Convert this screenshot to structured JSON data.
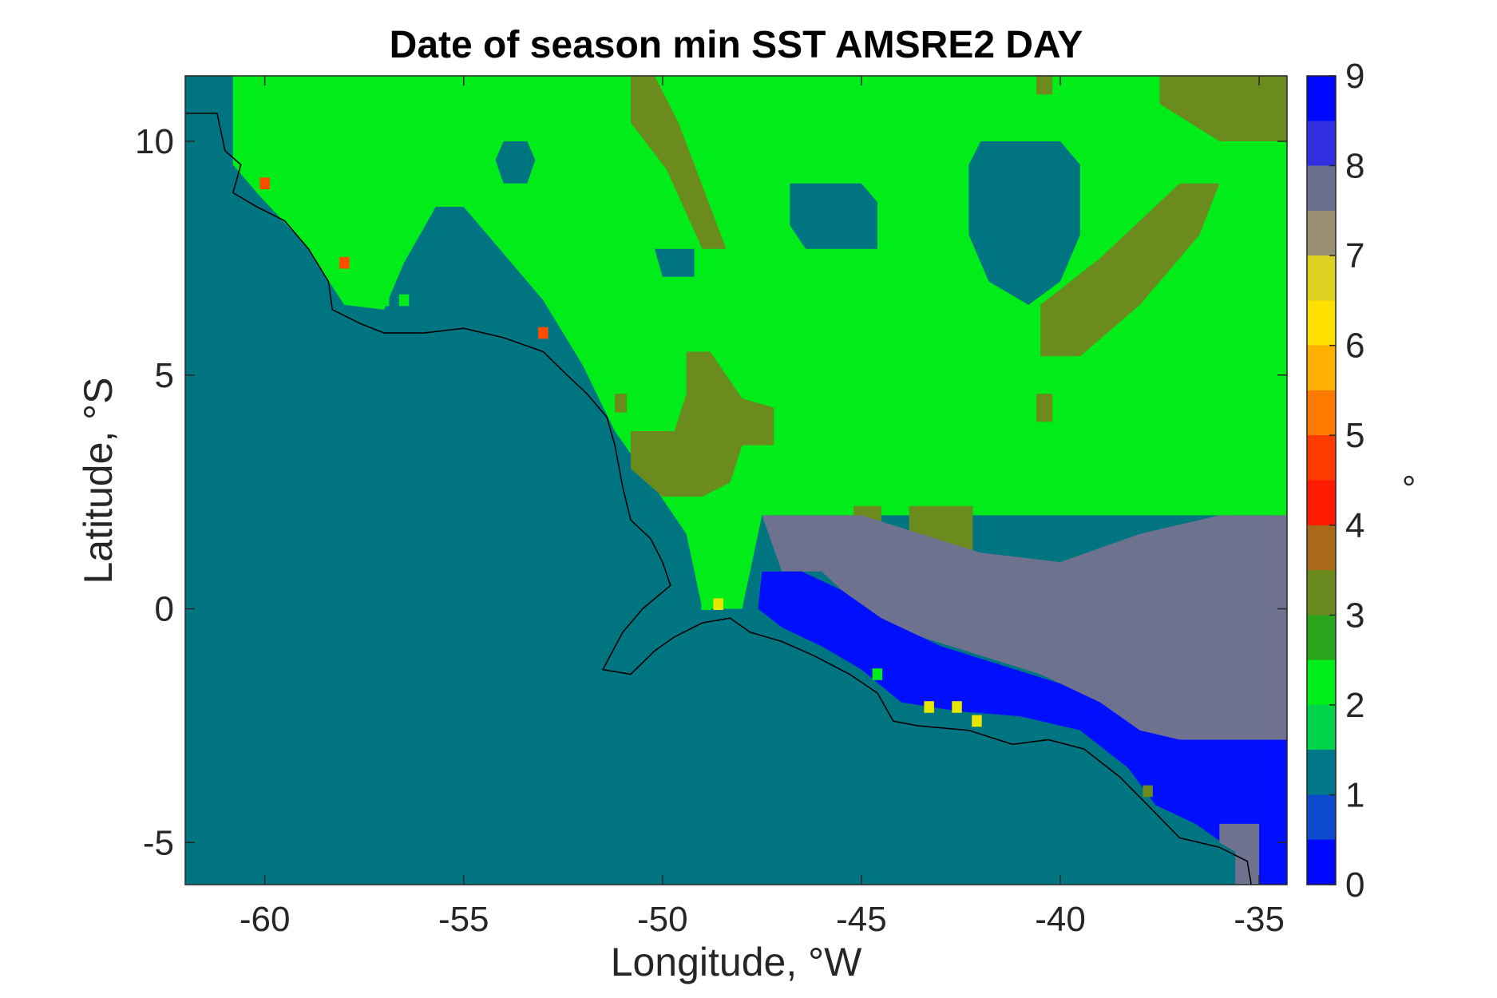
{
  "chart_data": {
    "type": "heatmap",
    "title": "Date of season min SST AMSRE2 DAY",
    "xlabel": "Longitude, °W",
    "ylabel": "Latitude, °S",
    "xlim": [
      -62,
      -34.3
    ],
    "ylim": [
      -5.9,
      11.4
    ],
    "xticks": [
      -60,
      -55,
      -50,
      -45,
      -40,
      -35
    ],
    "yticks": [
      -5,
      0,
      5,
      10
    ],
    "colorbar": {
      "range": [
        0,
        9
      ],
      "ticks": [
        0,
        1,
        2,
        3,
        4,
        5,
        6,
        7,
        8,
        9
      ],
      "unit": "°",
      "colors": [
        "#0008ff",
        "#0b4ccc",
        "#00788a",
        "#00d24a",
        "#00ee1a",
        "#2aa61c",
        "#6a8a20",
        "#a86a18",
        "#ff1a00",
        "#ff3a00",
        "#ff7a00",
        "#ffb000",
        "#ffe000",
        "#ddd020",
        "#9a8e70",
        "#6c7090",
        "#3030e0",
        "#0008ff"
      ]
    },
    "value_colors": {
      "1": "#007582",
      "2": "#00ed1a",
      "3": "#6b8b1e",
      "5": "#ff4d00",
      "7": "#e6e600",
      "8": "#6f728f",
      "9": "#0010ff"
    },
    "regions": [
      {
        "value": 2,
        "polygon": [
          [
            -60.8,
            11.4
          ],
          [
            -34.3,
            11.4
          ],
          [
            -34.3,
            2.0
          ],
          [
            -47.5,
            2.0
          ],
          [
            -48.0,
            0.0
          ],
          [
            -49.0,
            0.0
          ],
          [
            -49.4,
            1.6
          ],
          [
            -50.2,
            2.6
          ],
          [
            -51.2,
            3.8
          ],
          [
            -52.0,
            5.2
          ],
          [
            -53.0,
            6.6
          ],
          [
            -54.0,
            7.6
          ],
          [
            -55.0,
            8.6
          ],
          [
            -55.7,
            8.6
          ],
          [
            -56.5,
            7.4
          ],
          [
            -57.0,
            6.4
          ],
          [
            -58.0,
            6.5
          ],
          [
            -59.0,
            7.8
          ],
          [
            -60.2,
            8.9
          ],
          [
            -60.8,
            9.5
          ]
        ]
      },
      {
        "value": 1,
        "polygon": [
          [
            -54.0,
            10.0
          ],
          [
            -53.4,
            10.0
          ],
          [
            -53.2,
            9.6
          ],
          [
            -53.4,
            9.1
          ],
          [
            -54.0,
            9.1
          ],
          [
            -54.2,
            9.6
          ]
        ]
      },
      {
        "value": 1,
        "polygon": [
          [
            -46.8,
            9.1
          ],
          [
            -45.0,
            9.1
          ],
          [
            -44.6,
            8.7
          ],
          [
            -44.6,
            7.7
          ],
          [
            -46.4,
            7.7
          ],
          [
            -46.8,
            8.2
          ]
        ]
      },
      {
        "value": 1,
        "polygon": [
          [
            -42.0,
            10.0
          ],
          [
            -40.0,
            10.0
          ],
          [
            -39.5,
            9.5
          ],
          [
            -39.5,
            8.0
          ],
          [
            -40.0,
            7.0
          ],
          [
            -40.8,
            6.5
          ],
          [
            -41.8,
            7.0
          ],
          [
            -42.3,
            8.0
          ],
          [
            -42.3,
            9.5
          ]
        ]
      },
      {
        "value": 1,
        "polygon": [
          [
            -50.2,
            7.7
          ],
          [
            -49.2,
            7.7
          ],
          [
            -49.2,
            7.1
          ],
          [
            -50.0,
            7.1
          ]
        ]
      },
      {
        "value": 3,
        "polygon": [
          [
            -50.8,
            11.4
          ],
          [
            -50.2,
            11.4
          ],
          [
            -49.6,
            10.4
          ],
          [
            -48.8,
            8.6
          ],
          [
            -48.4,
            7.7
          ],
          [
            -49.0,
            7.7
          ],
          [
            -49.9,
            9.4
          ],
          [
            -50.8,
            10.4
          ]
        ]
      },
      {
        "value": 3,
        "polygon": [
          [
            -49.4,
            5.5
          ],
          [
            -48.8,
            5.5
          ],
          [
            -48.0,
            4.5
          ],
          [
            -47.2,
            4.3
          ],
          [
            -47.2,
            3.5
          ],
          [
            -48.0,
            3.5
          ],
          [
            -48.3,
            2.7
          ],
          [
            -49.0,
            2.4
          ],
          [
            -50.0,
            2.4
          ],
          [
            -50.8,
            3.0
          ],
          [
            -50.8,
            3.8
          ],
          [
            -49.7,
            3.8
          ],
          [
            -49.4,
            4.6
          ]
        ]
      },
      {
        "value": 3,
        "polygon": [
          [
            -45.2,
            2.2
          ],
          [
            -44.5,
            2.2
          ],
          [
            -44.5,
            1.8
          ],
          [
            -45.2,
            1.8
          ]
        ]
      },
      {
        "value": 3,
        "polygon": [
          [
            -43.8,
            2.2
          ],
          [
            -42.2,
            2.2
          ],
          [
            -42.2,
            1.2
          ],
          [
            -43.8,
            1.4
          ]
        ]
      },
      {
        "value": 3,
        "polygon": [
          [
            -37.0,
            9.1
          ],
          [
            -36.0,
            9.1
          ],
          [
            -36.5,
            8.0
          ],
          [
            -38.0,
            6.5
          ],
          [
            -39.5,
            5.4
          ],
          [
            -40.5,
            5.4
          ],
          [
            -40.5,
            6.5
          ],
          [
            -39.0,
            7.5
          ]
        ]
      },
      {
        "value": 3,
        "polygon": [
          [
            -37.5,
            11.4
          ],
          [
            -34.3,
            11.4
          ],
          [
            -34.3,
            10.0
          ],
          [
            -36.0,
            10.0
          ],
          [
            -37.5,
            10.8
          ]
        ]
      },
      {
        "value": 3,
        "polygon": [
          [
            -40.6,
            4.6
          ],
          [
            -40.2,
            4.6
          ],
          [
            -40.2,
            4.0
          ],
          [
            -40.6,
            4.0
          ]
        ]
      },
      {
        "value": 3,
        "polygon": [
          [
            -51.2,
            4.6
          ],
          [
            -50.9,
            4.6
          ],
          [
            -50.9,
            4.2
          ],
          [
            -51.2,
            4.2
          ]
        ]
      },
      {
        "value": 3,
        "polygon": [
          [
            -40.6,
            11.4
          ],
          [
            -40.2,
            11.4
          ],
          [
            -40.2,
            11.0
          ],
          [
            -40.6,
            11.0
          ]
        ]
      },
      {
        "value": 8,
        "polygon": [
          [
            -47.5,
            2.0
          ],
          [
            -45.0,
            2.0
          ],
          [
            -43.5,
            1.6
          ],
          [
            -42.0,
            1.2
          ],
          [
            -40.0,
            1.0
          ],
          [
            -38.0,
            1.6
          ],
          [
            -36.0,
            2.0
          ],
          [
            -34.3,
            2.0
          ],
          [
            -34.3,
            -2.8
          ],
          [
            -35.5,
            -2.8
          ],
          [
            -36.5,
            -3.0
          ],
          [
            -37.5,
            -2.9
          ],
          [
            -38.5,
            -2.4
          ],
          [
            -39.5,
            -1.8
          ],
          [
            -40.5,
            -1.4
          ],
          [
            -42.0,
            -1.0
          ],
          [
            -43.5,
            -0.6
          ],
          [
            -45.0,
            0.0
          ],
          [
            -46.0,
            0.8
          ],
          [
            -47.0,
            0.8
          ]
        ]
      },
      {
        "value": 9,
        "polygon": [
          [
            -47.5,
            0.8
          ],
          [
            -46.5,
            0.8
          ],
          [
            -45.5,
            0.4
          ],
          [
            -44.5,
            -0.2
          ],
          [
            -43.0,
            -0.8
          ],
          [
            -41.5,
            -1.2
          ],
          [
            -40.0,
            -1.6
          ],
          [
            -39.0,
            -2.0
          ],
          [
            -38.0,
            -2.6
          ],
          [
            -37.0,
            -2.8
          ],
          [
            -36.0,
            -2.8
          ],
          [
            -34.3,
            -2.8
          ],
          [
            -34.3,
            -5.9
          ],
          [
            -35.0,
            -5.9
          ],
          [
            -35.6,
            -5.2
          ],
          [
            -36.6,
            -4.6
          ],
          [
            -37.6,
            -4.2
          ],
          [
            -38.3,
            -3.4
          ],
          [
            -39.5,
            -2.6
          ],
          [
            -41.0,
            -2.3
          ],
          [
            -42.5,
            -2.2
          ],
          [
            -44.0,
            -2.0
          ],
          [
            -45.0,
            -1.3
          ],
          [
            -46.0,
            -0.8
          ],
          [
            -47.0,
            -0.4
          ],
          [
            -47.6,
            0.0
          ]
        ]
      },
      {
        "value": 8,
        "polygon": [
          [
            -36.0,
            -4.6
          ],
          [
            -35.0,
            -4.6
          ],
          [
            -35.0,
            -5.9
          ],
          [
            -35.6,
            -5.9
          ],
          [
            -35.6,
            -5.2
          ],
          [
            -36.0,
            -5.0
          ]
        ]
      }
    ],
    "points": [
      {
        "lon": -60.0,
        "lat": 9.1,
        "value": 5
      },
      {
        "lon": -58.0,
        "lat": 7.4,
        "value": 5
      },
      {
        "lon": -53.0,
        "lat": 5.9,
        "value": 5
      },
      {
        "lon": -48.6,
        "lat": 0.1,
        "value": 7
      },
      {
        "lon": -48.9,
        "lat": 0.1,
        "value": 2
      },
      {
        "lon": -43.3,
        "lat": -2.1,
        "value": 7
      },
      {
        "lon": -42.6,
        "lat": -2.1,
        "value": 7
      },
      {
        "lon": -42.1,
        "lat": -2.4,
        "value": 7
      },
      {
        "lon": -44.6,
        "lat": -1.4,
        "value": 2
      },
      {
        "lon": -37.8,
        "lat": -3.9,
        "value": 3
      },
      {
        "lon": -57.0,
        "lat": 6.6,
        "value": 2
      },
      {
        "lon": -56.5,
        "lat": 6.6,
        "value": 2
      }
    ],
    "coastline": [
      [
        -62.0,
        10.6
      ],
      [
        -61.2,
        10.6
      ],
      [
        -61.0,
        9.8
      ],
      [
        -60.6,
        9.5
      ],
      [
        -60.8,
        8.9
      ],
      [
        -60.2,
        8.6
      ],
      [
        -59.5,
        8.3
      ],
      [
        -58.9,
        7.7
      ],
      [
        -58.4,
        7.0
      ],
      [
        -58.3,
        6.4
      ],
      [
        -57.6,
        6.1
      ],
      [
        -57.0,
        5.9
      ],
      [
        -56.0,
        5.9
      ],
      [
        -55.0,
        6.0
      ],
      [
        -54.0,
        5.8
      ],
      [
        -53.0,
        5.5
      ],
      [
        -52.4,
        5.0
      ],
      [
        -51.9,
        4.6
      ],
      [
        -51.4,
        4.1
      ],
      [
        -51.2,
        3.5
      ],
      [
        -51.0,
        2.6
      ],
      [
        -50.8,
        1.9
      ],
      [
        -50.3,
        1.5
      ],
      [
        -50.0,
        1.0
      ],
      [
        -49.8,
        0.5
      ],
      [
        -50.5,
        0.0
      ],
      [
        -51.0,
        -0.5
      ],
      [
        -51.5,
        -1.3
      ],
      [
        -50.8,
        -1.4
      ],
      [
        -50.2,
        -0.9
      ],
      [
        -49.7,
        -0.6
      ],
      [
        -49.0,
        -0.3
      ],
      [
        -48.3,
        -0.2
      ],
      [
        -47.8,
        -0.5
      ],
      [
        -47.0,
        -0.7
      ],
      [
        -46.2,
        -1.0
      ],
      [
        -45.3,
        -1.4
      ],
      [
        -44.6,
        -1.8
      ],
      [
        -44.2,
        -2.4
      ],
      [
        -43.6,
        -2.5
      ],
      [
        -42.3,
        -2.6
      ],
      [
        -41.2,
        -2.9
      ],
      [
        -40.3,
        -2.8
      ],
      [
        -39.4,
        -3.0
      ],
      [
        -38.5,
        -3.6
      ],
      [
        -37.8,
        -4.2
      ],
      [
        -37.0,
        -4.9
      ],
      [
        -36.0,
        -5.1
      ],
      [
        -35.3,
        -5.4
      ],
      [
        -35.2,
        -5.9
      ]
    ]
  }
}
